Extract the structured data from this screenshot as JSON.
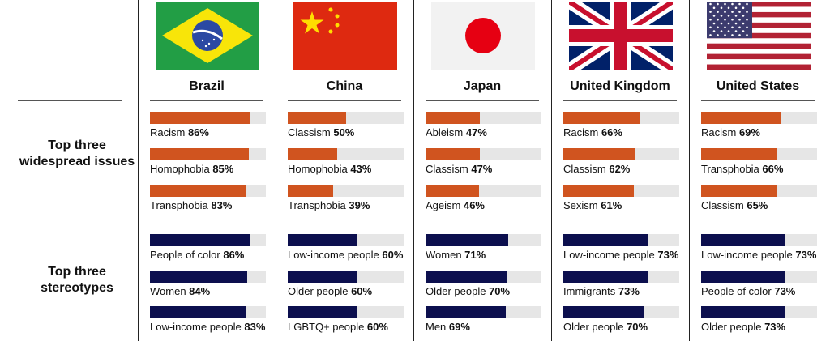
{
  "row_headers": {
    "issues": "Top three widespread issues",
    "stereotypes": "Top three stereotypes"
  },
  "colors": {
    "issues_bar": "#d0541f",
    "stereotypes_bar": "#0c0f4e",
    "bar_track": "#e6e6e6"
  },
  "chart_data": {
    "type": "bar",
    "orientation": "horizontal",
    "xlim": [
      0,
      100
    ],
    "unit": "%",
    "countries": [
      {
        "name": "Brazil",
        "flag_icon": "brazil-flag-icon",
        "issues": [
          {
            "label": "Racism",
            "value": 86
          },
          {
            "label": "Homophobia",
            "value": 85
          },
          {
            "label": "Transphobia",
            "value": 83
          }
        ],
        "stereotypes": [
          {
            "label": "People of color",
            "value": 86
          },
          {
            "label": "Women",
            "value": 84
          },
          {
            "label": "Low-income people",
            "value": 83
          }
        ]
      },
      {
        "name": "China",
        "flag_icon": "china-flag-icon",
        "issues": [
          {
            "label": "Classism",
            "value": 50
          },
          {
            "label": "Homophobia",
            "value": 43
          },
          {
            "label": "Transphobia",
            "value": 39
          }
        ],
        "stereotypes": [
          {
            "label": "Low-income people",
            "value": 60
          },
          {
            "label": "Older people",
            "value": 60
          },
          {
            "label": "LGBTQ+ people",
            "value": 60
          }
        ]
      },
      {
        "name": "Japan",
        "flag_icon": "japan-flag-icon",
        "issues": [
          {
            "label": "Ableism",
            "value": 47
          },
          {
            "label": "Classism",
            "value": 47
          },
          {
            "label": "Ageism",
            "value": 46
          }
        ],
        "stereotypes": [
          {
            "label": "Women",
            "value": 71
          },
          {
            "label": "Older people",
            "value": 70
          },
          {
            "label": "Men",
            "value": 69
          }
        ]
      },
      {
        "name": "United Kingdom",
        "flag_icon": "uk-flag-icon",
        "issues": [
          {
            "label": "Racism",
            "value": 66
          },
          {
            "label": "Classism",
            "value": 62
          },
          {
            "label": "Sexism",
            "value": 61
          }
        ],
        "stereotypes": [
          {
            "label": "Low-income people",
            "value": 73
          },
          {
            "label": "Immigrants",
            "value": 73
          },
          {
            "label": "Older people",
            "value": 70
          }
        ]
      },
      {
        "name": "United States",
        "flag_icon": "usa-flag-icon",
        "issues": [
          {
            "label": "Racism",
            "value": 69
          },
          {
            "label": "Transphobia",
            "value": 66
          },
          {
            "label": "Classism",
            "value": 65
          }
        ],
        "stereotypes": [
          {
            "label": "Low-income people",
            "value": 73
          },
          {
            "label": "People of color",
            "value": 73
          },
          {
            "label": "Older people",
            "value": 73
          }
        ]
      }
    ]
  }
}
